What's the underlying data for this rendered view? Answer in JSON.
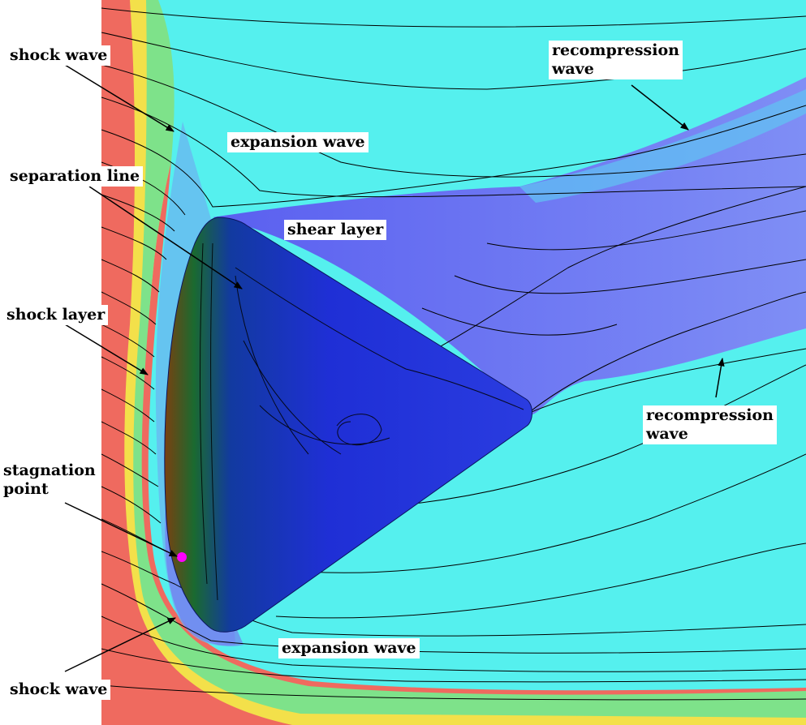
{
  "labels": {
    "shock_wave_top": "shock wave",
    "separation_line": "separation line",
    "shock_layer": "shock layer",
    "stagnation_point_1": "stagnation",
    "stagnation_point_2": "point",
    "shock_wave_bottom": "shock wave",
    "expansion_wave_top": "expansion wave",
    "shear_layer": "shear layer",
    "recompression_top_1": "recompression",
    "recompression_top_2": "wave",
    "recompression_right_1": "recompression",
    "recompression_right_2": "wave",
    "expansion_wave_bottom": "expansion wave"
  },
  "colors": {
    "freestream": "#ef6a5f",
    "shock_band": "#f7e04a",
    "post_shock": "#55f0ee",
    "wake": "#6b6bf2",
    "body": "#1f2fd6",
    "stagnation_point": "#ff00ff",
    "streamline": "#000000"
  }
}
